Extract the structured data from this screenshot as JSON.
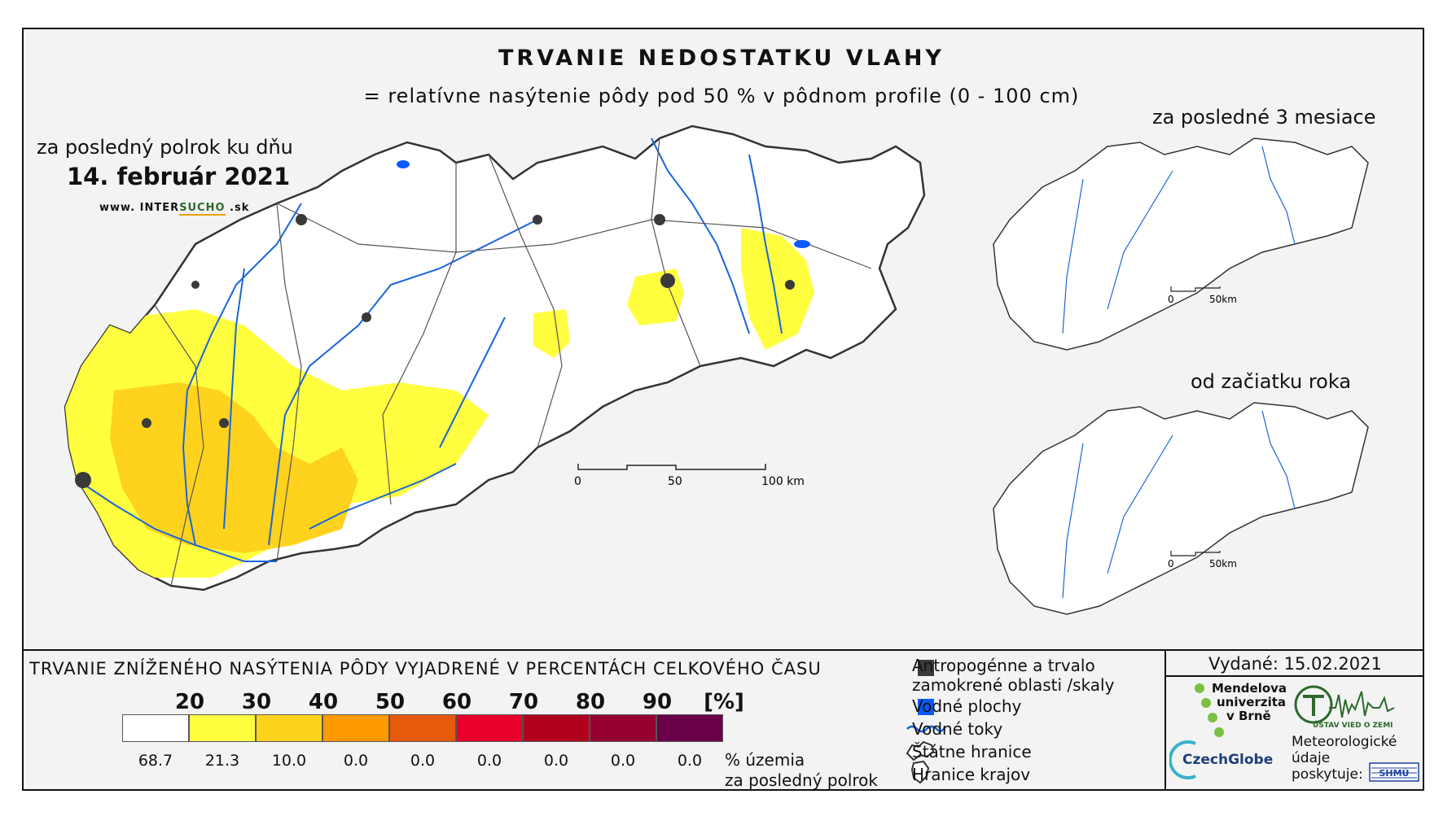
{
  "header": {
    "title": "TRVANIE NEDOSTATKU VLAHY",
    "subtitle": "= relatívne nasýtenie pôdy pod 50 % v pôdnom profile (0 - 100 cm)"
  },
  "main_map": {
    "period_label": "za posledný polrok ku dňu",
    "date": "14. február 2021",
    "website": {
      "prefix": "www. INTER",
      "accent": "SUCHO",
      "suffix": " .sk"
    },
    "scale_labels": [
      "0",
      "50",
      "100 km"
    ]
  },
  "insets": [
    {
      "title": "za posledné 3 mesiace",
      "scale_labels": [
        "0",
        "50km"
      ]
    },
    {
      "title": "od začiatku roka",
      "scale_labels": [
        "0",
        "50km"
      ]
    }
  ],
  "legend": {
    "title": "TRVANIE ZNÍŽENÉHO NASÝTENIA PÔDY VYJADRENÉ V PERCENTÁCH CELKOVÉHO ČASU",
    "thresholds": [
      "20",
      "30",
      "40",
      "50",
      "60",
      "70",
      "80",
      "90",
      "[%]"
    ],
    "classes": [
      {
        "color": "#ffffff",
        "share": "68.7"
      },
      {
        "color": "#ffff40",
        "share": "21.3"
      },
      {
        "color": "#ffd21e",
        "share": "10.0"
      },
      {
        "color": "#ff9a00",
        "share": "0.0"
      },
      {
        "color": "#e65a0e",
        "share": "0.0"
      },
      {
        "color": "#e8002a",
        "share": "0.0"
      },
      {
        "color": "#b0001e",
        "share": "0.0"
      },
      {
        "color": "#960030",
        "share": "0.0"
      },
      {
        "color": "#6a004a",
        "share": "0.0"
      }
    ],
    "share_label_line1": "% územia",
    "share_label_line2": "za posledný polrok"
  },
  "map_key": {
    "anthropogenic": "Antropogénne a trvalo",
    "anthropogenic_2": "zamokrené oblasti /skaly",
    "water_bodies": "Vodné plochy",
    "water_courses": "Vodné toky",
    "state_border": "Štátne hranice",
    "region_border": "Hranice krajov",
    "colors": {
      "anthropogenic": "#3a3a3a",
      "water_bodies": "#0a5aff",
      "water_courses": "#1a66d9"
    }
  },
  "issuer": {
    "issued": "Vydané: 15.02.2021",
    "mendel": [
      "Mendelova",
      "univerzita",
      "v Brně"
    ],
    "czechglobe": "CzechGlobe",
    "uvoz": "ÚSTAV VIED O ZEMI",
    "meteo": [
      "Meteorologické",
      "údaje",
      "poskytuje:"
    ],
    "shmu": "SHMÚ"
  }
}
